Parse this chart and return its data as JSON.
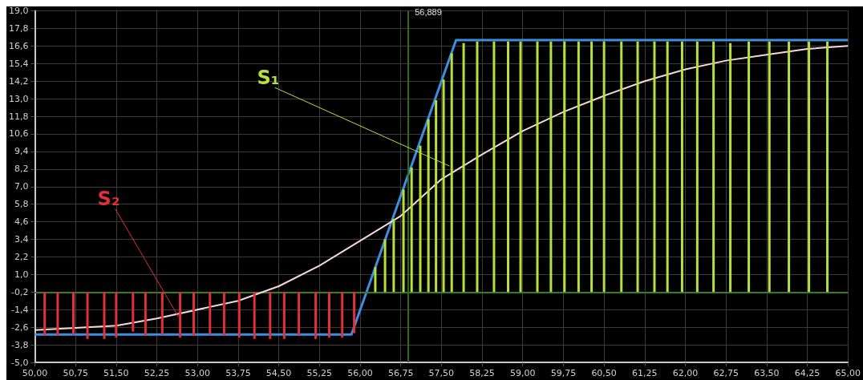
{
  "chart_data": {
    "type": "line",
    "xlim": [
      50,
      65
    ],
    "ylim": [
      -5,
      19
    ],
    "xticks": [
      {
        "value": 50,
        "label": "50,00"
      },
      {
        "value": 50.75,
        "label": "50,75"
      },
      {
        "value": 51.5,
        "label": "51,50"
      },
      {
        "value": 52.25,
        "label": "52,25"
      },
      {
        "value": 53,
        "label": "53,00"
      },
      {
        "value": 53.75,
        "label": "53,75"
      },
      {
        "value": 54.5,
        "label": "54,50"
      },
      {
        "value": 55.25,
        "label": "55,25"
      },
      {
        "value": 56,
        "label": "56,00"
      },
      {
        "value": 56.75,
        "label": "56,75"
      },
      {
        "value": 57.5,
        "label": "57,50"
      },
      {
        "value": 58.25,
        "label": "58,25"
      },
      {
        "value": 59,
        "label": "59,00"
      },
      {
        "value": 59.75,
        "label": "59,75"
      },
      {
        "value": 60.5,
        "label": "60,50"
      },
      {
        "value": 61.25,
        "label": "61,25"
      },
      {
        "value": 62,
        "label": "62,00"
      },
      {
        "value": 62.75,
        "label": "62,75"
      },
      {
        "value": 63.5,
        "label": "63,50"
      },
      {
        "value": 64.25,
        "label": "64,25"
      },
      {
        "value": 65,
        "label": "65,00"
      }
    ],
    "yticks": [
      {
        "value": -5,
        "label": "-5,0"
      },
      {
        "value": -3.8,
        "label": "-3,8"
      },
      {
        "value": -2.6,
        "label": "-2,6"
      },
      {
        "value": -1.4,
        "label": "-1,4"
      },
      {
        "value": -0.2,
        "label": "-0,2"
      },
      {
        "value": 1,
        "label": "1,0"
      },
      {
        "value": 2.2,
        "label": "2,2"
      },
      {
        "value": 3.4,
        "label": "3,4"
      },
      {
        "value": 4.6,
        "label": "4,6"
      },
      {
        "value": 5.8,
        "label": "5,8"
      },
      {
        "value": 7,
        "label": "7,0"
      },
      {
        "value": 8.2,
        "label": "8,2"
      },
      {
        "value": 9.4,
        "label": "9,4"
      },
      {
        "value": 10.6,
        "label": "10,6"
      },
      {
        "value": 11.8,
        "label": "11,8"
      },
      {
        "value": 13,
        "label": "13,0"
      },
      {
        "value": 14.2,
        "label": "14,2"
      },
      {
        "value": 15.4,
        "label": "15,4"
      },
      {
        "value": 16.6,
        "label": "16,6"
      },
      {
        "value": 17.8,
        "label": "17,8"
      },
      {
        "value": 19,
        "label": "19,0"
      }
    ],
    "grid": true,
    "marker": "none",
    "line_style": "solid",
    "series": [
      {
        "type": "bar",
        "color": "#e0303a",
        "x": [
          50.18,
          50.42,
          50.71,
          50.97,
          51.28,
          51.5,
          51.81,
          52.04,
          52.35,
          52.68,
          52.93,
          53.23,
          53.49,
          53.77,
          54.05,
          54.34,
          54.6,
          54.87,
          55.18,
          55.43,
          55.67,
          55.89
        ],
        "base": [
          -0.2,
          -0.2,
          -0.2,
          -0.2,
          -0.2,
          -0.2,
          -0.2,
          -0.2,
          -0.2,
          -0.2,
          -0.2,
          -0.2,
          -0.2,
          -0.2,
          -0.2,
          -0.2,
          -0.2,
          -0.2,
          -0.2,
          -0.2,
          -0.2,
          -0.2
        ],
        "values": [
          -3.0,
          -3.0,
          -2.9,
          -3.2,
          -3.2,
          -3.1,
          -2.7,
          -3.0,
          -2.9,
          -3.1,
          -3.0,
          -2.9,
          -3.0,
          -3.1,
          -3.2,
          -3.2,
          -3.2,
          -3.0,
          -3.2,
          -3.1,
          -3.1,
          -2.8
        ]
      },
      {
        "type": "bar",
        "color": "#b8e03c",
        "x": [
          56.28,
          56.46,
          56.62,
          56.8,
          56.95,
          57.11,
          57.26,
          57.4,
          57.54,
          57.69,
          57.91,
          58.16,
          58.47,
          58.73,
          58.96,
          59.27,
          59.52,
          59.77,
          60.03,
          60.27,
          60.5,
          60.82,
          61.12,
          61.43,
          61.67,
          61.94,
          62.22,
          62.52,
          62.83,
          63.17,
          63.55,
          63.91,
          64.28,
          64.62
        ],
        "base": [
          -0.2,
          -0.2,
          -0.2,
          -0.2,
          -0.2,
          -0.2,
          -0.2,
          -0.2,
          -0.2,
          -0.2,
          -0.2,
          -0.2,
          -0.2,
          -0.2,
          -0.2,
          -0.2,
          -0.2,
          -0.2,
          -0.2,
          -0.2,
          -0.2,
          -0.2,
          -0.2,
          -0.2,
          -0.2,
          -0.2,
          -0.2,
          -0.2,
          -0.2,
          -0.2,
          -0.2,
          -0.2,
          -0.2,
          -0.2
        ],
        "values": [
          1.7,
          3.6,
          5.0,
          7.0,
          8.5,
          10.0,
          11.8,
          13.1,
          14.5,
          16.3,
          17.0,
          17.1,
          17.1,
          17.1,
          17.1,
          17.1,
          17.1,
          17.1,
          17.1,
          17.1,
          17.1,
          17.1,
          17.1,
          17.1,
          17.1,
          17.1,
          17.1,
          17.1,
          17.0,
          17.1,
          17.1,
          17.1,
          17.1,
          17.1
        ]
      },
      {
        "color": "#3d8ee0",
        "x": [
          50,
          55.84,
          57.77,
          65
        ],
        "values": [
          -3.1,
          -3.1,
          17.0,
          17.0
        ]
      },
      {
        "color": "#f5d8d8",
        "x": [
          50,
          51.5,
          52.25,
          53.75,
          54.5,
          55.25,
          56,
          56.75,
          57.5,
          58.25,
          59,
          59.75,
          60.5,
          61.25,
          62,
          62.75,
          63.5,
          64.25,
          65
        ],
        "values": [
          -2.8,
          -2.5,
          -2.0,
          -0.8,
          0.2,
          1.6,
          3.3,
          5.0,
          7.5,
          9.2,
          10.8,
          12.1,
          13.2,
          14.2,
          15.0,
          15.6,
          16.0,
          16.4,
          16.6
        ]
      }
    ],
    "ref_lines": [
      {
        "axis": "y",
        "value": -0.2,
        "color": "#3a7a28"
      },
      {
        "axis": "x",
        "value": 56.889,
        "label": "56,889",
        "color": "#2f6a20"
      }
    ],
    "annotations": [
      {
        "text": "S₁",
        "x": 57.65,
        "y": 8.4
      },
      {
        "text": "S₂",
        "x": 52.65,
        "y": -1.9
      }
    ]
  }
}
